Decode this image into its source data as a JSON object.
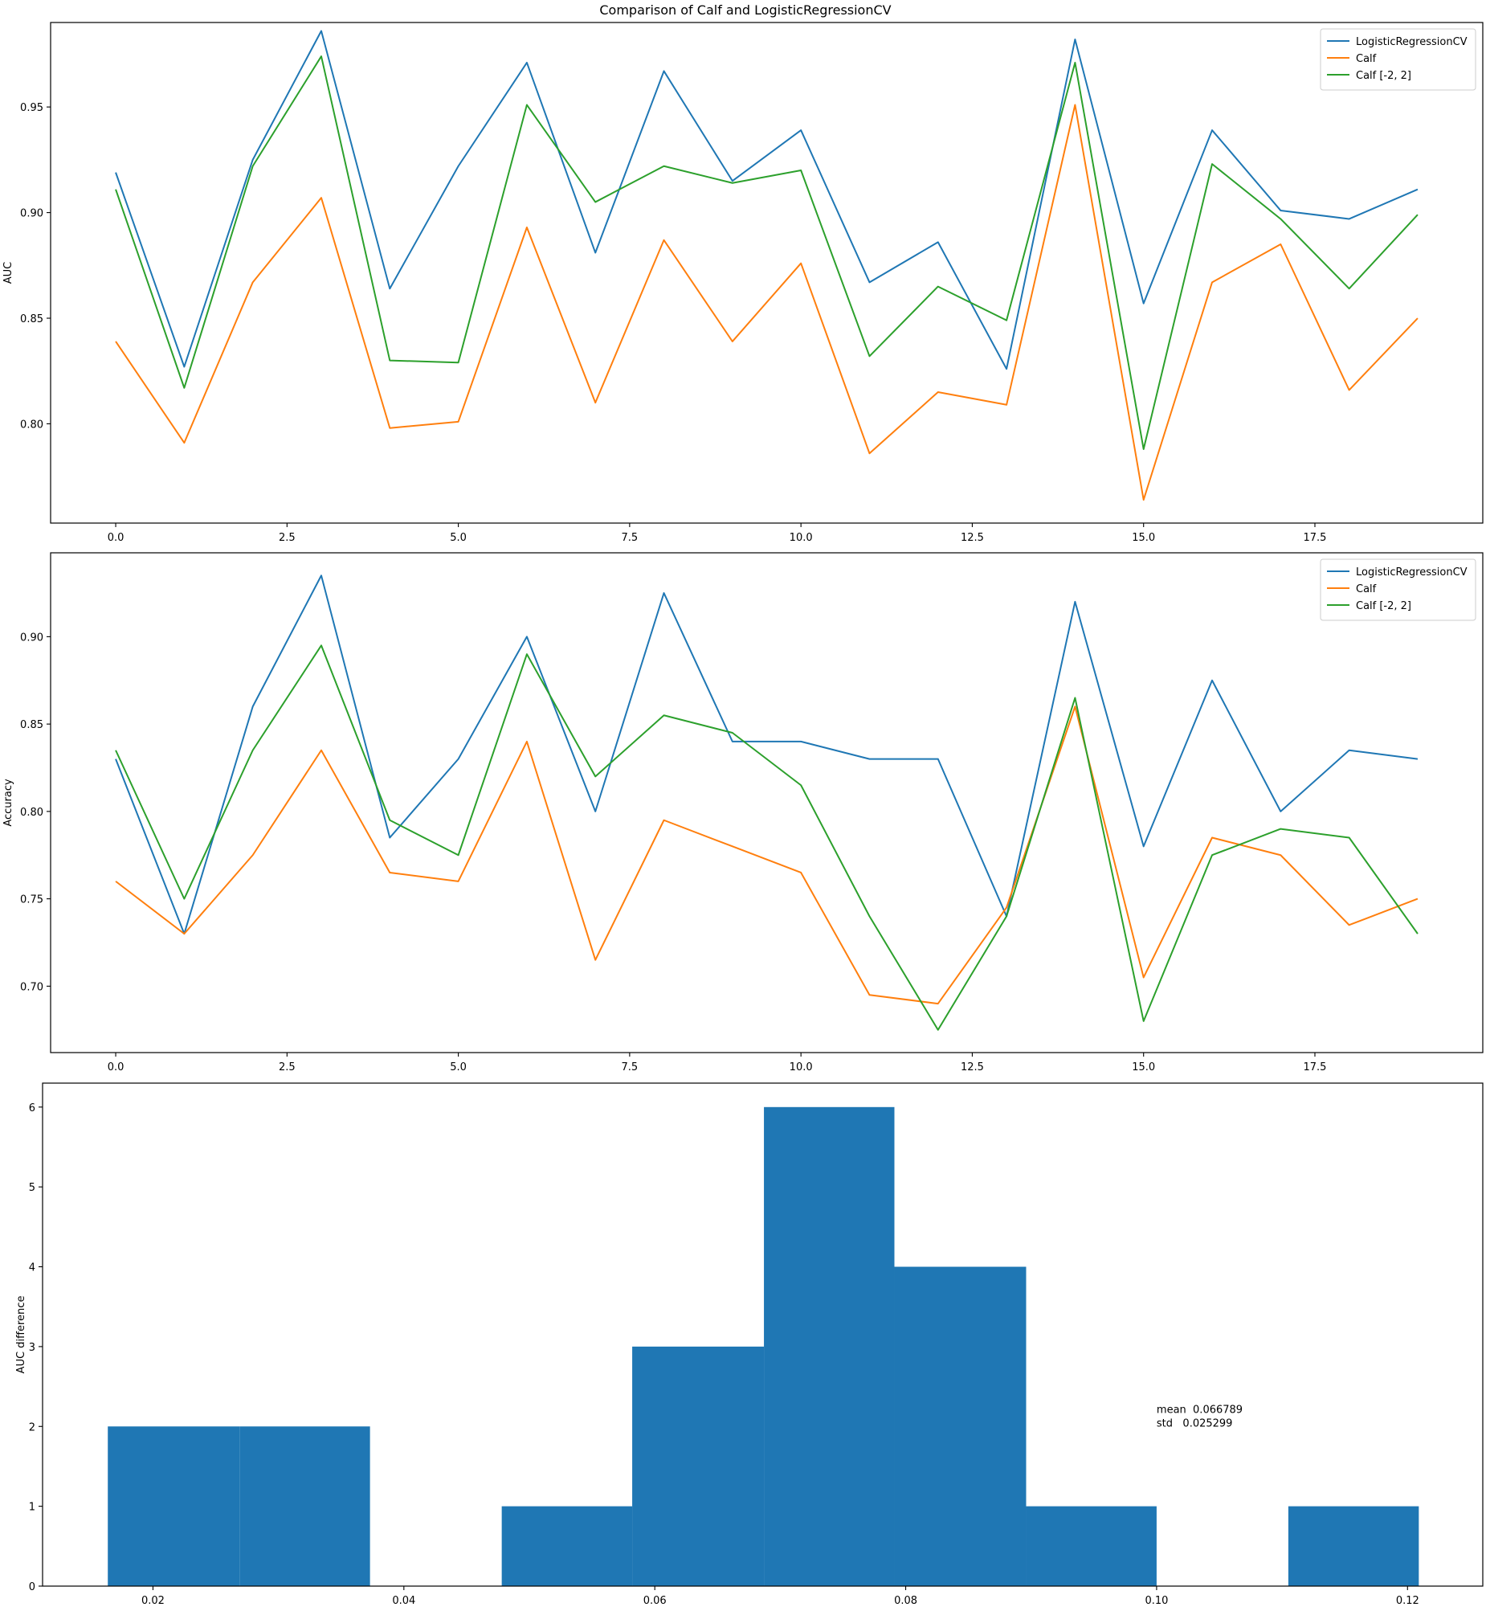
{
  "figure": {
    "title": "Comparison of Calf and LogisticRegressionCV"
  },
  "chart_data": [
    {
      "type": "line",
      "title": "",
      "xlabel": "",
      "ylabel": "AUC",
      "xlim": [
        -0.95,
        19.95
      ],
      "ylim": [
        0.753,
        0.99
      ],
      "x": [
        0,
        1,
        2,
        3,
        4,
        5,
        6,
        7,
        8,
        9,
        10,
        11,
        12,
        13,
        14,
        15,
        16,
        17,
        18,
        19
      ],
      "xticks": [
        "0.0",
        "2.5",
        "5.0",
        "7.5",
        "10.0",
        "12.5",
        "15.0",
        "17.5"
      ],
      "xtick_values": [
        0,
        2.5,
        5,
        7.5,
        10,
        12.5,
        15,
        17.5
      ],
      "yticks": [
        "0.80",
        "0.85",
        "0.90",
        "0.95"
      ],
      "ytick_values": [
        0.8,
        0.85,
        0.9,
        0.95
      ],
      "legend_position": "top-right",
      "series": [
        {
          "name": "LogisticRegressionCV",
          "color": "#1f77b4",
          "values": [
            0.919,
            0.827,
            0.925,
            0.986,
            0.864,
            0.922,
            0.971,
            0.881,
            0.967,
            0.915,
            0.939,
            0.867,
            0.886,
            0.826,
            0.982,
            0.857,
            0.939,
            0.901,
            0.897,
            0.911
          ]
        },
        {
          "name": "Calf",
          "color": "#ff7f0e",
          "values": [
            0.839,
            0.791,
            0.867,
            0.907,
            0.798,
            0.801,
            0.893,
            0.81,
            0.887,
            0.839,
            0.876,
            0.786,
            0.815,
            0.809,
            0.951,
            0.764,
            0.867,
            0.885,
            0.816,
            0.85
          ]
        },
        {
          "name": "Calf [-2, 2]",
          "color": "#2ca02c",
          "values": [
            0.911,
            0.817,
            0.922,
            0.974,
            0.83,
            0.829,
            0.951,
            0.905,
            0.922,
            0.914,
            0.92,
            0.832,
            0.865,
            0.849,
            0.971,
            0.788,
            0.923,
            0.897,
            0.864,
            0.899
          ]
        }
      ]
    },
    {
      "type": "line",
      "title": "",
      "xlabel": "",
      "ylabel": "Accuracy",
      "xlim": [
        -0.95,
        19.95
      ],
      "ylim": [
        0.662,
        0.948
      ],
      "x": [
        0,
        1,
        2,
        3,
        4,
        5,
        6,
        7,
        8,
        9,
        10,
        11,
        12,
        13,
        14,
        15,
        16,
        17,
        18,
        19
      ],
      "xticks": [
        "0.0",
        "2.5",
        "5.0",
        "7.5",
        "10.0",
        "12.5",
        "15.0",
        "17.5"
      ],
      "xtick_values": [
        0,
        2.5,
        5,
        7.5,
        10,
        12.5,
        15,
        17.5
      ],
      "yticks": [
        "0.70",
        "0.75",
        "0.80",
        "0.85",
        "0.90"
      ],
      "ytick_values": [
        0.7,
        0.75,
        0.8,
        0.85,
        0.9
      ],
      "legend_position": "top-right",
      "series": [
        {
          "name": "LogisticRegressionCV",
          "color": "#1f77b4",
          "values": [
            0.83,
            0.73,
            0.86,
            0.935,
            0.785,
            0.83,
            0.9,
            0.8,
            0.925,
            0.84,
            0.84,
            0.83,
            0.83,
            0.74,
            0.92,
            0.78,
            0.875,
            0.8,
            0.835,
            0.83
          ]
        },
        {
          "name": "Calf",
          "color": "#ff7f0e",
          "values": [
            0.76,
            0.73,
            0.775,
            0.835,
            0.765,
            0.76,
            0.84,
            0.715,
            0.795,
            0.78,
            0.765,
            0.695,
            0.69,
            0.745,
            0.86,
            0.705,
            0.785,
            0.775,
            0.735,
            0.75
          ]
        },
        {
          "name": "Calf [-2, 2]",
          "color": "#2ca02c",
          "values": [
            0.835,
            0.75,
            0.835,
            0.895,
            0.795,
            0.775,
            0.89,
            0.82,
            0.855,
            0.845,
            0.815,
            0.74,
            0.675,
            0.74,
            0.865,
            0.68,
            0.775,
            0.79,
            0.785,
            0.73
          ]
        }
      ]
    },
    {
      "type": "bar",
      "subtype": "histogram",
      "title": "",
      "xlabel": "",
      "ylabel": "AUC difference",
      "xlim": [
        0.0112,
        0.126
      ],
      "ylim": [
        0,
        6.3
      ],
      "color": "#1f77b4",
      "bin_edges": [
        0.0164,
        0.0269,
        0.0373,
        0.0478,
        0.0582,
        0.0687,
        0.0791,
        0.0896,
        0.1,
        0.1105,
        0.1209
      ],
      "values": [
        2,
        2,
        0,
        1,
        3,
        6,
        4,
        1,
        0,
        1
      ],
      "xticks": [
        "0.02",
        "0.04",
        "0.06",
        "0.08",
        "0.10",
        "0.12"
      ],
      "xtick_values": [
        0.02,
        0.04,
        0.06,
        0.08,
        0.1,
        0.12
      ],
      "yticks": [
        "0",
        "1",
        "2",
        "3",
        "4",
        "5",
        "6"
      ],
      "ytick_values": [
        0,
        1,
        2,
        3,
        4,
        5,
        6
      ],
      "annotation": {
        "lines": [
          "mean  0.066789",
          "std   0.025299"
        ],
        "x": 0.1,
        "y": 2.0
      }
    }
  ]
}
